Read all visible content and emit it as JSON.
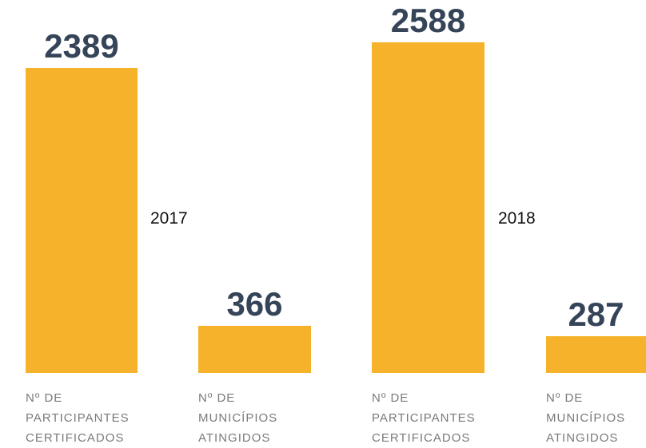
{
  "chart_data": {
    "type": "bar",
    "categories": [
      "Nº DE PARTICIPANTES CERTIFICADOS",
      "Nº DE MUNICÍPIOS ATINGIDOS"
    ],
    "series": [
      {
        "name": "2017",
        "color": "#f5b22a",
        "values": [
          2389,
          366
        ]
      },
      {
        "name": "2018",
        "color": "#f5b22a",
        "values": [
          2588,
          287
        ]
      }
    ]
  }
}
